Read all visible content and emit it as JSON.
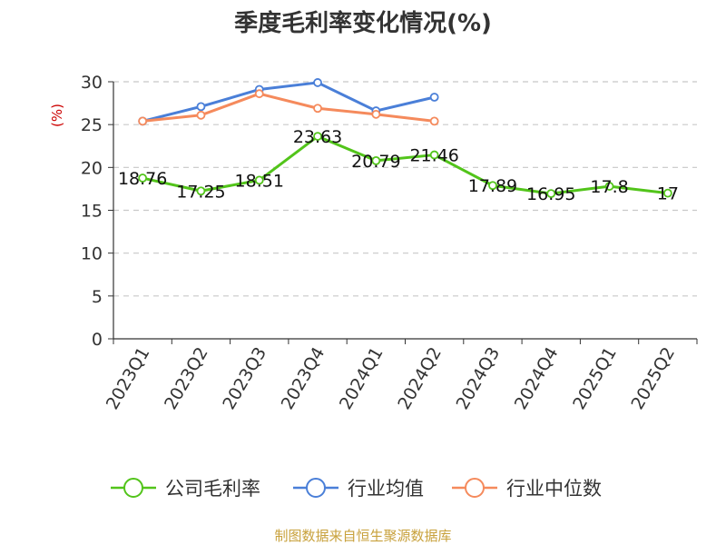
{
  "chart_data": {
    "type": "line",
    "title": "季度毛利率变化情况(%)",
    "ylabel": "(%)",
    "xlabel": "",
    "ylim": [
      0,
      30
    ],
    "yticks": [
      0,
      5,
      10,
      15,
      20,
      25,
      30
    ],
    "grid": true,
    "legend_position": "bottom",
    "categories": [
      "2023Q1",
      "2023Q2",
      "2023Q3",
      "2023Q4",
      "2024Q1",
      "2024Q2",
      "2024Q3",
      "2024Q4",
      "2025Q1",
      "2025Q2"
    ],
    "series": [
      {
        "name": "公司毛利率",
        "color": "#52c41a",
        "values": [
          18.76,
          17.25,
          18.51,
          23.63,
          20.79,
          21.46,
          17.89,
          16.95,
          17.8,
          17
        ],
        "labels": [
          "18.76",
          "17.25",
          "18.51",
          "23.63",
          "20.79",
          "21.46",
          "17.89",
          "16.95",
          "17.8",
          "17"
        ]
      },
      {
        "name": "行业均值",
        "color": "#4a7fd8",
        "values": [
          25.4,
          27.1,
          29.1,
          29.9,
          26.6,
          28.2,
          null,
          null,
          null,
          null
        ]
      },
      {
        "name": "行业中位数",
        "color": "#f58a5c",
        "values": [
          25.4,
          26.1,
          28.6,
          26.9,
          26.2,
          25.4,
          null,
          null,
          null,
          null
        ]
      }
    ]
  },
  "footer": {
    "source": "制图数据来自恒生聚源数据库"
  }
}
